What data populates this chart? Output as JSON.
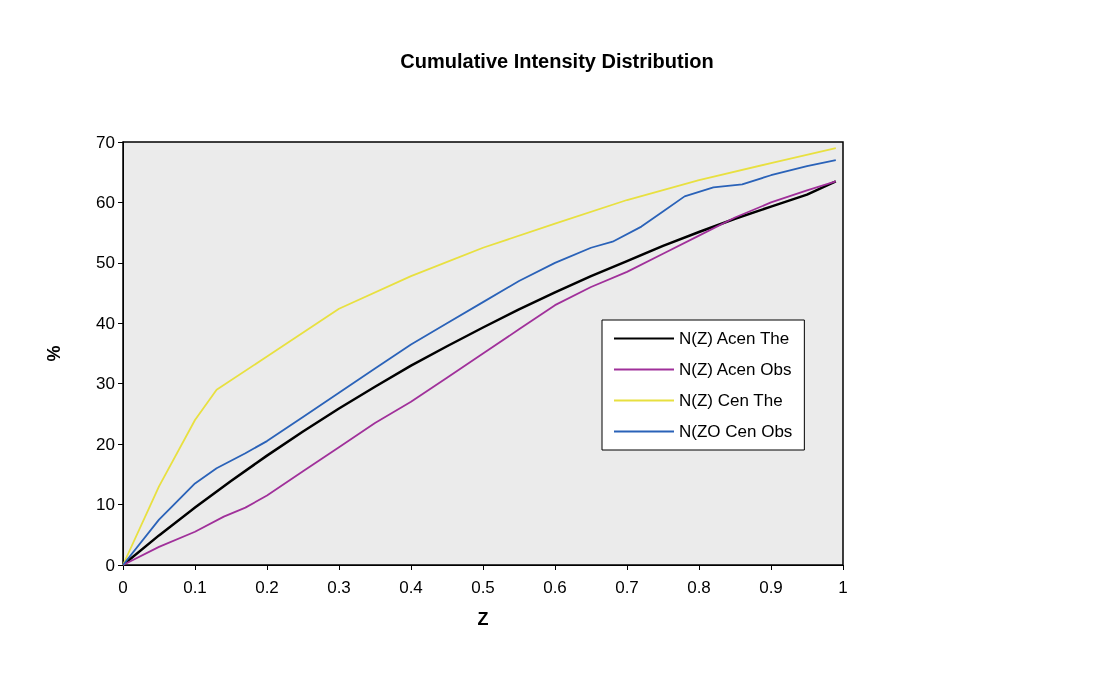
{
  "chart_data": {
    "type": "line",
    "title": "Cumulative Intensity Distribution",
    "xlabel": "Z",
    "ylabel": "%",
    "xlim": [
      0,
      1
    ],
    "xticks": [
      0,
      0.1,
      0.2,
      0.3,
      0.4,
      0.5,
      0.6,
      0.7,
      0.8,
      0.9,
      1
    ],
    "ylim": [
      0,
      70
    ],
    "yticks": [
      0,
      10,
      20,
      30,
      40,
      50,
      60,
      70
    ],
    "grid": false,
    "legend": "right",
    "marker": "none",
    "line_style": "solid",
    "series": [
      {
        "name": "N(Z) Acen The",
        "color": "#000000",
        "x": [
          0,
          0.05,
          0.1,
          0.15,
          0.2,
          0.25,
          0.3,
          0.35,
          0.4,
          0.45,
          0.5,
          0.55,
          0.6,
          0.65,
          0.7,
          0.75,
          0.8,
          0.85,
          0.9,
          0.95,
          0.99
        ],
        "values": [
          0,
          4.9,
          9.5,
          13.9,
          18.1,
          22.1,
          25.9,
          29.5,
          33,
          36.2,
          39.3,
          42.3,
          45.1,
          47.8,
          50.3,
          52.8,
          55.1,
          57.3,
          59.3,
          61.3,
          63.5
        ]
      },
      {
        "name": "N(Z) Acen Obs",
        "color": "#a0309a",
        "x": [
          0,
          0.05,
          0.1,
          0.14,
          0.17,
          0.2,
          0.25,
          0.3,
          0.35,
          0.4,
          0.45,
          0.5,
          0.55,
          0.6,
          0.65,
          0.7,
          0.75,
          0.8,
          0.85,
          0.9,
          0.95,
          0.99
        ],
        "values": [
          0,
          3,
          5.5,
          8,
          9.5,
          11.5,
          15.5,
          19.5,
          23.5,
          27,
          31,
          35,
          39,
          43,
          46,
          48.5,
          51.5,
          54.5,
          57.5,
          60,
          62,
          63.5
        ]
      },
      {
        "name": "N(Z) Cen The",
        "color": "#e8e040",
        "x": [
          0,
          0.05,
          0.1,
          0.13,
          0.2,
          0.3,
          0.4,
          0.5,
          0.6,
          0.7,
          0.8,
          0.9,
          0.99
        ],
        "values": [
          0,
          13,
          24,
          29,
          34.5,
          42.4,
          47.8,
          52.5,
          56.5,
          60.4,
          63.7,
          66.5,
          69
        ]
      },
      {
        "name": "N(ZO Cen Obs",
        "color": "#2a62b8",
        "x": [
          0,
          0.05,
          0.1,
          0.13,
          0.17,
          0.2,
          0.25,
          0.3,
          0.35,
          0.4,
          0.45,
          0.5,
          0.55,
          0.6,
          0.65,
          0.68,
          0.72,
          0.75,
          0.78,
          0.82,
          0.86,
          0.9,
          0.95,
          0.99
        ],
        "values": [
          0,
          7.5,
          13.5,
          16,
          18.5,
          20.5,
          24.5,
          28.5,
          32.5,
          36.5,
          40,
          43.5,
          47,
          50,
          52.5,
          53.5,
          56,
          58.5,
          61,
          62.5,
          63,
          64.5,
          66,
          67
        ]
      }
    ]
  }
}
